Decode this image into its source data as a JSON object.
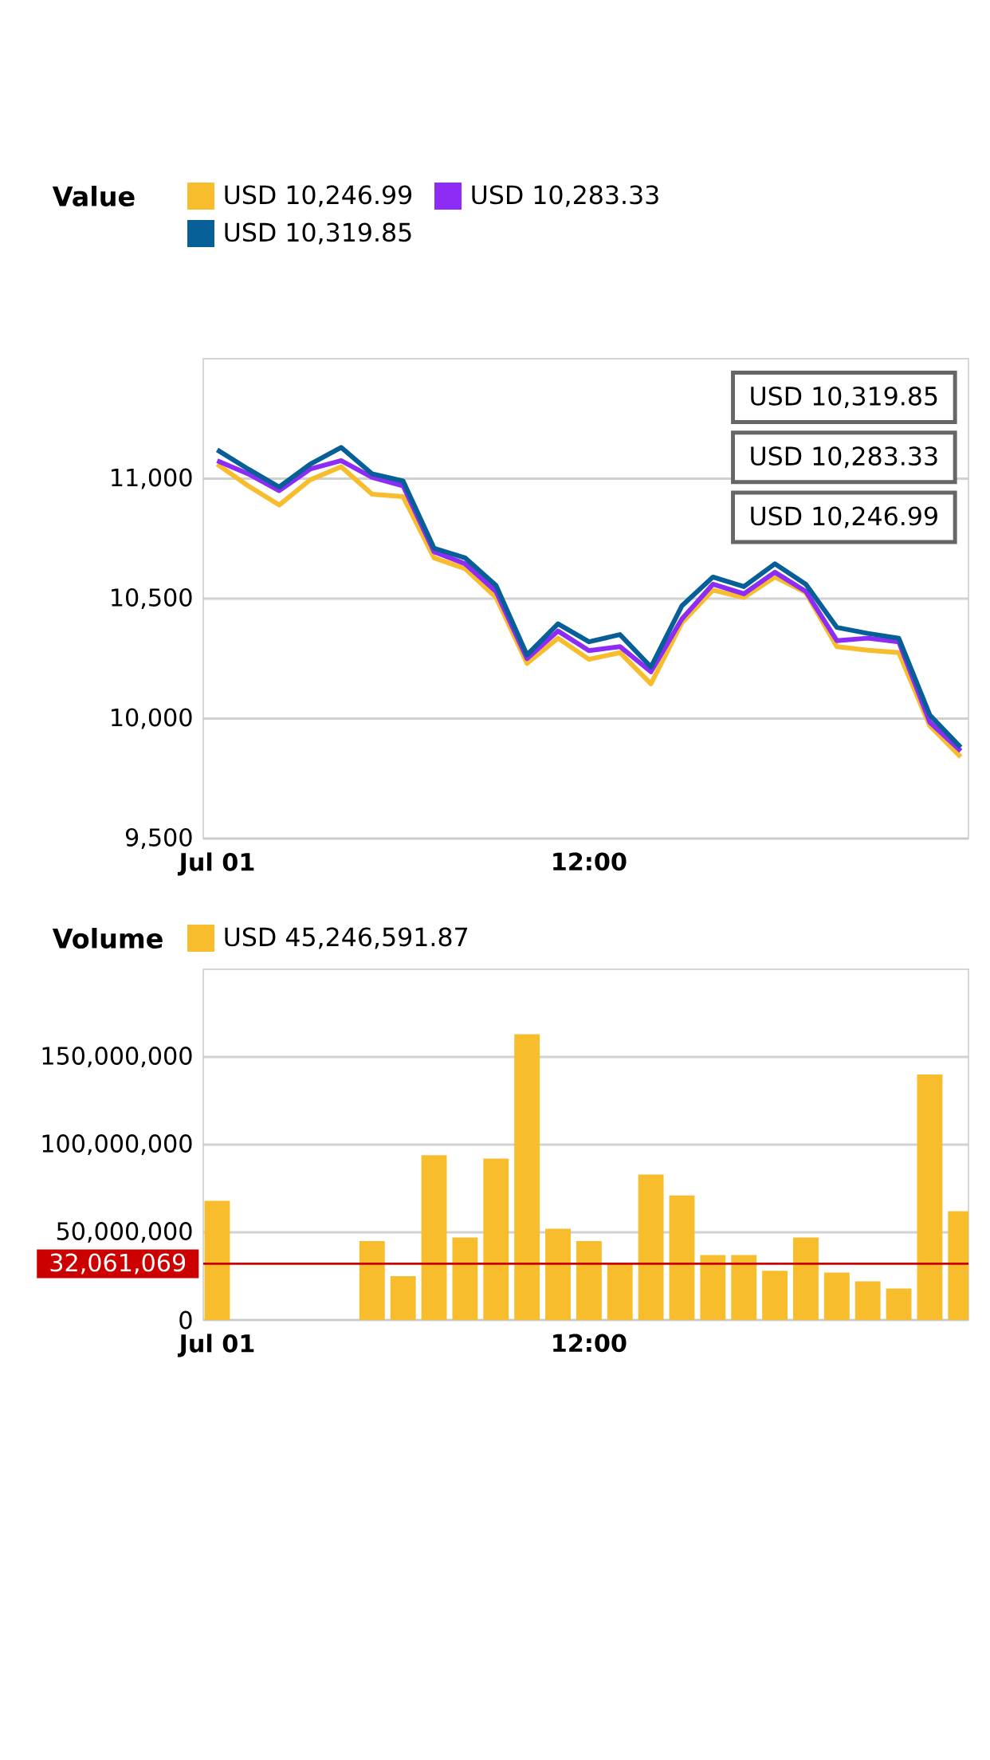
{
  "chart_data": [
    {
      "type": "line",
      "legend_title": "Value",
      "legend": "top",
      "grid": "y",
      "categories": [
        "Jul 01",
        null,
        null,
        null,
        null,
        null,
        null,
        null,
        null,
        null,
        null,
        null,
        "12:00",
        null,
        null,
        null,
        null,
        null,
        null,
        null,
        null,
        null,
        null,
        null,
        null
      ],
      "ylim": [
        9500,
        11500
      ],
      "yticks": [
        {
          "value": 9500,
          "label": "9,500"
        },
        {
          "value": 10000,
          "label": "10,000"
        },
        {
          "value": 10500,
          "label": "10,500"
        },
        {
          "value": 11000,
          "label": "11,000"
        }
      ],
      "series": [
        {
          "name": "USD 10,246.99",
          "color": "#f7bd2c",
          "values": [
            11060,
            10970,
            10890,
            10995,
            11050,
            10935,
            10925,
            10670,
            10625,
            10505,
            10230,
            10335,
            10247,
            10275,
            10145,
            10400,
            10535,
            10505,
            10590,
            10525,
            10300,
            10285,
            10275,
            9970,
            9840
          ]
        },
        {
          "name": "USD 10,283.33",
          "color": "#8c2cf4",
          "values": [
            11075,
            11020,
            10950,
            11040,
            11075,
            11005,
            10970,
            10695,
            10645,
            10530,
            10250,
            10365,
            10283,
            10300,
            10195,
            10415,
            10560,
            10520,
            10610,
            10530,
            10325,
            10335,
            10320,
            9985,
            9865
          ]
        },
        {
          "name": "USD 10,319.85",
          "color": "#075f98",
          "values": [
            11120,
            11040,
            10965,
            11060,
            11130,
            11020,
            10990,
            10710,
            10670,
            10555,
            10265,
            10395,
            10320,
            10350,
            10215,
            10470,
            10590,
            10550,
            10645,
            10560,
            10380,
            10355,
            10335,
            10015,
            9880
          ]
        }
      ],
      "annotations": [
        "USD 10,319.85",
        "USD 10,283.33",
        "USD 10,246.99"
      ]
    },
    {
      "type": "bar",
      "legend_title": "Volume",
      "legend": "top",
      "grid": "y",
      "categories": [
        "Jul 01",
        null,
        null,
        null,
        null,
        null,
        null,
        null,
        null,
        null,
        null,
        null,
        "12:00",
        null,
        null,
        null,
        null,
        null,
        null,
        null,
        null,
        null,
        null,
        null,
        null
      ],
      "ylim": [
        0,
        200000000
      ],
      "yticks": [
        0,
        {
          "value": 50000000,
          "label": "50,000,000"
        },
        {
          "value": 100000000,
          "label": "100,000,000"
        },
        {
          "value": 150000000,
          "label": "150,000,000"
        }
      ],
      "ref_lines": [
        {
          "axis": "y",
          "value": 32061069,
          "label": "32,061,069",
          "color": "#cc0000"
        }
      ],
      "series": [
        {
          "name": "USD 45,246,591.87",
          "color": "#f7bd2c",
          "values": [
            68000000,
            null,
            null,
            null,
            null,
            45000000,
            25000000,
            94000000,
            47000000,
            92000000,
            163000000,
            52000000,
            45000000,
            32000000,
            83000000,
            71000000,
            37000000,
            37000000,
            28000000,
            47000000,
            27000000,
            22000000,
            18000000,
            140000000,
            62000000
          ]
        }
      ]
    }
  ]
}
